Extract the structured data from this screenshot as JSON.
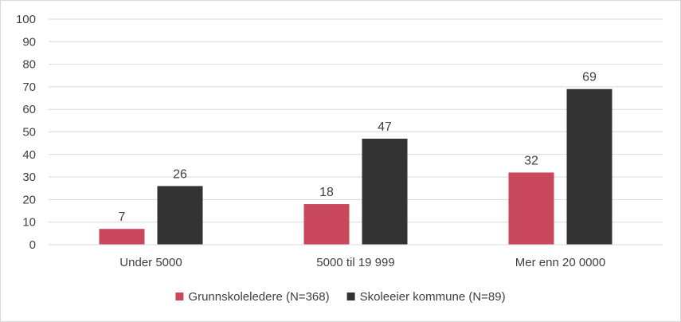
{
  "chart_data": {
    "type": "bar",
    "categories": [
      "Under 5000",
      "5000 til 19 999",
      "Mer enn 20 0000"
    ],
    "series": [
      {
        "name": "Grunnskoleledere (N=368)",
        "values": [
          7,
          18,
          32
        ],
        "color": "#c9485b"
      },
      {
        "name": "Skoleeier kommune (N=89)",
        "values": [
          26,
          47,
          69
        ],
        "color": "#333333"
      }
    ],
    "yticks": [
      0,
      10,
      20,
      30,
      40,
      50,
      60,
      70,
      80,
      90,
      100
    ],
    "ylim": [
      0,
      100
    ],
    "grid": true,
    "legend_position": "bottom",
    "data_labels": true
  }
}
